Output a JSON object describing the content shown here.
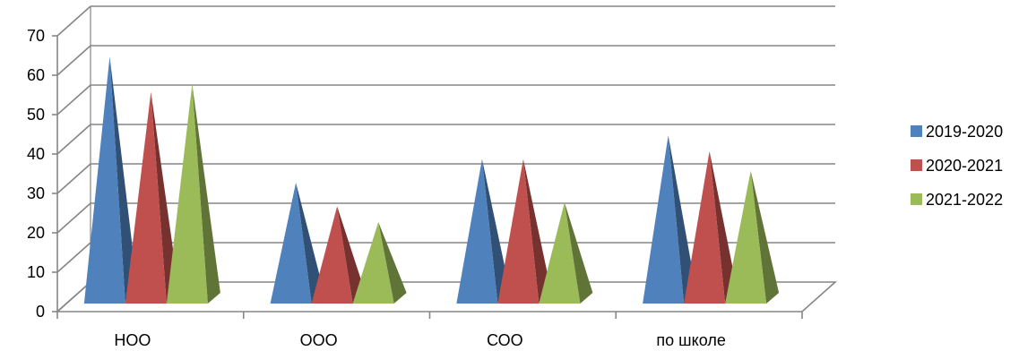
{
  "chart_data": {
    "type": "bar",
    "title": "",
    "xlabel": "",
    "ylabel": "",
    "categories": [
      "НОО",
      "ООО",
      "СОО",
      "по школе"
    ],
    "series": [
      {
        "name": "2019-2020",
        "color": "#4F81BD",
        "values": [
          67,
          35,
          41,
          47
        ]
      },
      {
        "name": "2020-2021",
        "color": "#C0504D",
        "values": [
          58,
          29,
          41,
          43
        ]
      },
      {
        "name": "2021-2022",
        "color": "#9BBB59",
        "values": [
          60,
          25,
          30,
          38
        ]
      }
    ],
    "ylim": [
      0,
      70
    ],
    "yticks": [
      0,
      10,
      20,
      30,
      40,
      50,
      60,
      70
    ],
    "grid": true,
    "legend": "right",
    "mark_shape": "pyramid"
  }
}
